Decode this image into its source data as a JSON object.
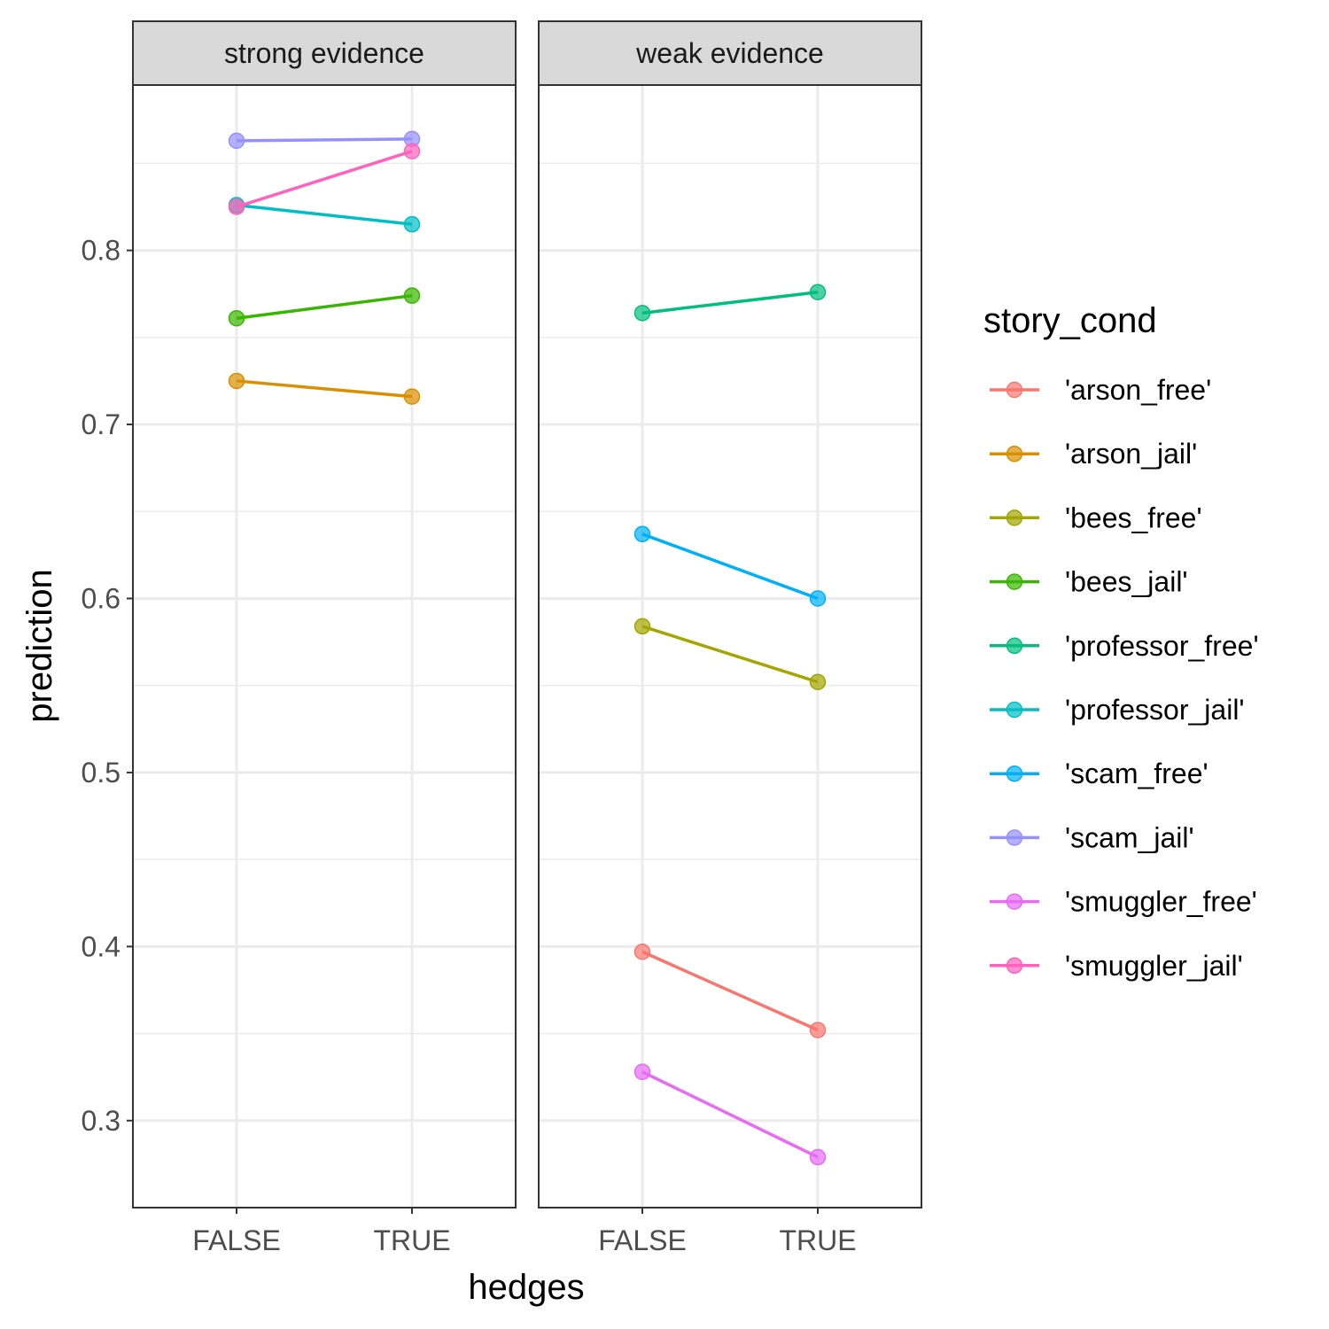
{
  "chart_data": {
    "type": "line",
    "facet_by": "evidence",
    "panels": [
      "strong evidence",
      "weak evidence"
    ],
    "x": [
      "FALSE",
      "TRUE"
    ],
    "xlabel": "hedges",
    "ylabel": "prediction",
    "ylim": [
      0.25,
      0.895
    ],
    "yticks": [
      0.3,
      0.4,
      0.5,
      0.6,
      0.7,
      0.8
    ],
    "ytick_labels": [
      "0.3",
      "0.4",
      "0.5",
      "0.6",
      "0.7",
      "0.8"
    ],
    "grid": true,
    "legend": {
      "title": "story_cond",
      "position": "right"
    },
    "series": [
      {
        "name": "'arson_free'",
        "color": "#F8766D",
        "panel": "weak evidence",
        "values": [
          0.397,
          0.352
        ]
      },
      {
        "name": "'arson_jail'",
        "color": "#D89000",
        "panel": "strong evidence",
        "values": [
          0.725,
          0.716
        ]
      },
      {
        "name": "'bees_free'",
        "color": "#A3A500",
        "panel": "weak evidence",
        "values": [
          0.584,
          0.552
        ]
      },
      {
        "name": "'bees_jail'",
        "color": "#39B600",
        "panel": "strong evidence",
        "values": [
          0.761,
          0.774
        ]
      },
      {
        "name": "'professor_free'",
        "color": "#00BF7D",
        "panel": "weak evidence",
        "values": [
          0.764,
          0.776
        ]
      },
      {
        "name": "'professor_jail'",
        "color": "#00BFC4",
        "panel": "strong evidence",
        "values": [
          0.826,
          0.815
        ]
      },
      {
        "name": "'scam_free'",
        "color": "#00B0F6",
        "panel": "weak evidence",
        "values": [
          0.637,
          0.6
        ]
      },
      {
        "name": "'scam_jail'",
        "color": "#9590FF",
        "panel": "strong evidence",
        "values": [
          0.863,
          0.864
        ]
      },
      {
        "name": "'smuggler_free'",
        "color": "#E76BF3",
        "panel": "weak evidence",
        "values": [
          0.328,
          0.279
        ]
      },
      {
        "name": "'smuggler_jail'",
        "color": "#FF62BC",
        "panel": "strong evidence",
        "values": [
          0.825,
          0.857
        ]
      }
    ]
  }
}
